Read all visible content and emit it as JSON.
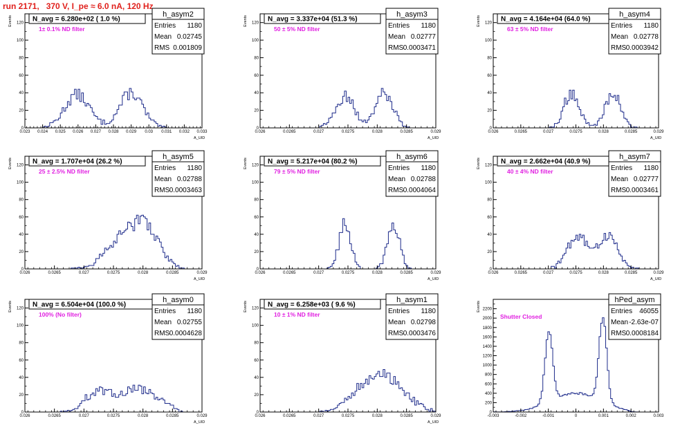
{
  "page": {
    "title": "run 2171,   370 V, I_pe ≈ 6.0 nA, 120 Hz",
    "colors": {
      "title": "#e0201c",
      "histogram": "#1c2a8a",
      "annotation": "#e01ee0",
      "axis": "#000000"
    }
  },
  "chart_data": [
    {
      "type": "bar",
      "histogram": "h_asym2",
      "y_title": "Events",
      "x_title": "A_UID",
      "n_avg": "N_avg = 6.280e+02 ( 1.0 %)",
      "note": "1± 0.1% ND filter",
      "stats": [
        {
          "label": "Entries",
          "value": "1180"
        },
        {
          "label": "Mean",
          "value": "0.02745"
        },
        {
          "label": "RMS",
          "value": "0.001809"
        }
      ],
      "xlim": [
        0.023,
        0.033
      ],
      "ylim": [
        0,
        130
      ],
      "x_ticks": [
        "0.023",
        "0.024",
        "0.025",
        "0.026",
        "0.027",
        "0.028",
        "0.029",
        "0.03",
        "0.031",
        "0.032",
        "0.033"
      ],
      "y_ticks": [
        "0",
        "20",
        "40",
        "60",
        "80",
        "100",
        "120"
      ],
      "peaks": [
        {
          "mu": 0.02595,
          "sigma": 0.0007,
          "amp": 38
        },
        {
          "mu": 0.029,
          "sigma": 0.00065,
          "amp": 40
        }
      ],
      "cut": 0.0309
    },
    {
      "type": "bar",
      "histogram": "h_asym3",
      "y_title": "Events",
      "x_title": "A_UID",
      "n_avg": "N_avg = 3.337e+04 (51.3 %)",
      "note": "50 ± 5% ND filter",
      "stats": [
        {
          "label": "Entries",
          "value": "1180"
        },
        {
          "label": "Mean",
          "value": "0.02777"
        },
        {
          "label": "RMS",
          "value": "0.0003471"
        }
      ],
      "xlim": [
        0.026,
        0.029
      ],
      "ylim": [
        0,
        130
      ],
      "x_ticks": [
        "0.026",
        "0.0265",
        "0.027",
        "0.0275",
        "0.028",
        "0.0285",
        "0.029"
      ],
      "y_ticks": [
        "0",
        "20",
        "40",
        "60",
        "80",
        "100",
        "120"
      ],
      "peaks": [
        {
          "mu": 0.02745,
          "sigma": 0.00016,
          "amp": 36
        },
        {
          "mu": 0.02812,
          "sigma": 0.00015,
          "amp": 40
        }
      ],
      "cut": 0.0286
    },
    {
      "type": "bar",
      "histogram": "h_asym4",
      "y_title": "Events",
      "x_title": "A_UID",
      "n_avg": "N_avg = 4.164e+04 (64.0 %)",
      "note": "63 ± 5% ND filter",
      "stats": [
        {
          "label": "Entries",
          "value": "1180"
        },
        {
          "label": "Mean",
          "value": "0.02778"
        },
        {
          "label": "RMS",
          "value": "0.0003942"
        }
      ],
      "xlim": [
        0.026,
        0.029
      ],
      "ylim": [
        0,
        130
      ],
      "x_ticks": [
        "0.026",
        "0.0265",
        "0.027",
        "0.0275",
        "0.028",
        "0.0285",
        "0.029"
      ],
      "y_ticks": [
        "0",
        "20",
        "40",
        "60",
        "80",
        "100",
        "120"
      ],
      "peaks": [
        {
          "mu": 0.02742,
          "sigma": 0.00014,
          "amp": 40
        },
        {
          "mu": 0.02817,
          "sigma": 0.00014,
          "amp": 40
        }
      ],
      "cut": 0.02875
    },
    {
      "type": "bar",
      "histogram": "h_asym5",
      "y_title": "Events",
      "x_title": "A_UID",
      "n_avg": "N_avg = 1.707e+04 (26.2 %)",
      "note": "25 ± 2.5% ND filter",
      "stats": [
        {
          "label": "Entries",
          "value": "1180"
        },
        {
          "label": "Mean",
          "value": "0.02788"
        },
        {
          "label": "RMS",
          "value": "0.0003463"
        }
      ],
      "xlim": [
        0.026,
        0.029
      ],
      "ylim": [
        0,
        130
      ],
      "x_ticks": [
        "0.026",
        "0.0265",
        "0.027",
        "0.0275",
        "0.028",
        "0.0285",
        "0.029"
      ],
      "y_ticks": [
        "0",
        "20",
        "40",
        "60",
        "80",
        "100",
        "120"
      ],
      "peaks": [
        {
          "mu": 0.0277,
          "sigma": 0.0003,
          "amp": 36
        },
        {
          "mu": 0.02808,
          "sigma": 0.00022,
          "amp": 36
        }
      ],
      "cut": 0.02865
    },
    {
      "type": "bar",
      "histogram": "h_asym6",
      "y_title": "Events",
      "x_title": "A_UID",
      "n_avg": "N_avg = 5.217e+04 (80.2 %)",
      "note": "79 ± 5% ND filter",
      "stats": [
        {
          "label": "Entries",
          "value": "1180"
        },
        {
          "label": "Mean",
          "value": "0.02788"
        },
        {
          "label": "RMS",
          "value": "0.0004064"
        }
      ],
      "xlim": [
        0.026,
        0.029
      ],
      "ylim": [
        0,
        130
      ],
      "x_ticks": [
        "0.026",
        "0.0265",
        "0.027",
        "0.0275",
        "0.028",
        "0.0285",
        "0.029"
      ],
      "y_ticks": [
        "0",
        "20",
        "40",
        "60",
        "80",
        "100",
        "120"
      ],
      "peaks": [
        {
          "mu": 0.02745,
          "sigma": 0.0001,
          "amp": 52
        },
        {
          "mu": 0.02828,
          "sigma": 0.0001,
          "amp": 52
        }
      ],
      "cut": 0.0289
    },
    {
      "type": "bar",
      "histogram": "h_asym7",
      "y_title": "Events",
      "x_title": "A_UID",
      "n_avg": "N_avg = 2.662e+04 (40.9 %)",
      "note": "40 ± 4% ND filter",
      "stats": [
        {
          "label": "Entries",
          "value": "1180"
        },
        {
          "label": "Mean",
          "value": "0.02777"
        },
        {
          "label": "RMS",
          "value": "0.0003461"
        }
      ],
      "xlim": [
        0.026,
        0.029
      ],
      "ylim": [
        0,
        130
      ],
      "x_ticks": [
        "0.026",
        "0.0265",
        "0.027",
        "0.0275",
        "0.028",
        "0.0285",
        "0.029"
      ],
      "y_ticks": [
        "0",
        "20",
        "40",
        "60",
        "80",
        "100",
        "120"
      ],
      "peaks": [
        {
          "mu": 0.02752,
          "sigma": 0.00018,
          "amp": 38
        },
        {
          "mu": 0.02808,
          "sigma": 0.00018,
          "amp": 38
        }
      ],
      "cut": 0.0287
    },
    {
      "type": "bar",
      "histogram": "h_asym0",
      "y_title": "Events",
      "x_title": "A_UID",
      "n_avg": "N_avg = 6.504e+04 (100.0 %)",
      "note": "100% (No filter)",
      "stats": [
        {
          "label": "Entries",
          "value": "1180"
        },
        {
          "label": "Mean",
          "value": "0.02755"
        },
        {
          "label": "RMS",
          "value": "0.0004628"
        }
      ],
      "xlim": [
        0.026,
        0.029
      ],
      "ylim": [
        0,
        130
      ],
      "x_ticks": [
        "0.026",
        "0.0265",
        "0.027",
        "0.0275",
        "0.028",
        "0.0285",
        "0.029"
      ],
      "y_ticks": [
        "0",
        "20",
        "40",
        "60",
        "80",
        "100",
        "120"
      ],
      "peaks": [
        {
          "mu": 0.0272,
          "sigma": 0.0002,
          "amp": 20
        },
        {
          "mu": 0.0279,
          "sigma": 0.00035,
          "amp": 27
        }
      ],
      "cut": 0.02855
    },
    {
      "type": "bar",
      "histogram": "h_asym1",
      "y_title": "Events",
      "x_title": "A_UID",
      "n_avg": "N_avg = 6.258e+03 ( 9.6 %)",
      "note": "10 ± 1% ND filter",
      "stats": [
        {
          "label": "Entries",
          "value": "1180"
        },
        {
          "label": "Mean",
          "value": "0.02798"
        },
        {
          "label": "RMS",
          "value": "0.0003476"
        }
      ],
      "xlim": [
        0.026,
        0.029
      ],
      "ylim": [
        0,
        130
      ],
      "x_ticks": [
        "0.026",
        "0.0265",
        "0.027",
        "0.0275",
        "0.028",
        "0.0285",
        "0.029"
      ],
      "y_ticks": [
        "0",
        "20",
        "40",
        "60",
        "80",
        "100",
        "120"
      ],
      "peaks": [
        {
          "mu": 0.0281,
          "sigma": 0.00035,
          "amp": 42
        },
        {
          "mu": 0.0276,
          "sigma": 0.0002,
          "amp": 8
        }
      ],
      "cut": 0.0291
    },
    {
      "type": "bar",
      "histogram": "hPed_asym",
      "y_title": "Events",
      "x_title": "",
      "n_avg": "",
      "note": "Shutter Closed",
      "stats": [
        {
          "label": "Entries",
          "value": "46055"
        },
        {
          "label": "Mean",
          "value": "-2.63e-07"
        },
        {
          "label": "RMS",
          "value": "0.0008184"
        }
      ],
      "xlim": [
        -0.003,
        0.003
      ],
      "ylim": [
        0,
        2400
      ],
      "x_ticks": [
        "-0.003",
        "-0.002",
        "-0.001",
        "0",
        "0.001",
        "0.002",
        "0.003"
      ],
      "y_ticks": [
        "0",
        "200",
        "400",
        "600",
        "800",
        "1000",
        "1200",
        "1400",
        "1600",
        "1800",
        "2000",
        "2200"
      ],
      "peaks": [
        {
          "mu": -0.00098,
          "sigma": 0.00014,
          "amp": 1500
        },
        {
          "mu": 0.00098,
          "sigma": 0.00014,
          "amp": 1800
        },
        {
          "mu": 0,
          "sigma": 0.0009,
          "amp": 400
        }
      ],
      "cut": 0.0019
    }
  ]
}
